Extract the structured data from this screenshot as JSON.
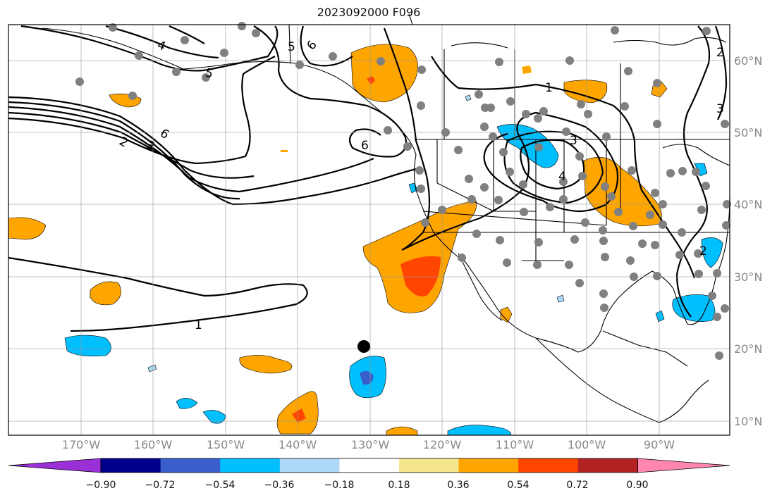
{
  "title": "2023092000 F096",
  "lat_labels": [
    "60°N",
    "50°N",
    "40°N",
    "30°N",
    "20°N",
    "10°N"
  ],
  "lon_labels": [
    "170°W",
    "160°W",
    "150°W",
    "140°W",
    "130°W",
    "120°W",
    "110°W",
    "100°W",
    "90°W"
  ],
  "contour_labels": [
    "2",
    "3",
    "4",
    "6",
    "5",
    "6",
    "6",
    "1",
    "3",
    "4",
    "3",
    "2",
    "1",
    "5",
    "2"
  ],
  "colorbar": {
    "ticks": [
      "−0.90",
      "−0.72",
      "−0.54",
      "−0.36",
      "−0.18",
      "0.18",
      "0.36",
      "0.54",
      "0.72",
      "0.90"
    ],
    "colors": [
      "#9b30d9",
      "#00008b",
      "#3a5fcd",
      "#00bfff",
      "#add8f6",
      "#ffffff",
      "#f5e58c",
      "#ffa500",
      "#ff4500",
      "#b22222",
      "#ff86b0"
    ]
  }
}
